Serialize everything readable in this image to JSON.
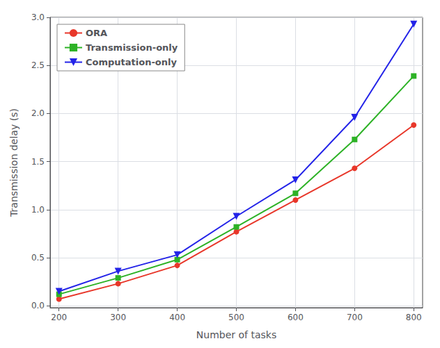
{
  "chart_data": {
    "type": "line",
    "xlabel": "Number of tasks",
    "ylabel": "Transmission delay (s)",
    "x": [
      200,
      300,
      400,
      500,
      600,
      700,
      800
    ],
    "series": [
      {
        "name": "ORA",
        "color": "#e8372a",
        "marker": "circle",
        "values": [
          0.07,
          0.23,
          0.42,
          0.77,
          1.1,
          1.43,
          1.88
        ]
      },
      {
        "name": "Transmission-only",
        "color": "#2db226",
        "marker": "square",
        "values": [
          0.12,
          0.29,
          0.48,
          0.82,
          1.17,
          1.73,
          2.39
        ]
      },
      {
        "name": "Computation-only",
        "color": "#2323e8",
        "marker": "triangle_down",
        "values": [
          0.15,
          0.36,
          0.53,
          0.93,
          1.31,
          1.96,
          2.93
        ]
      }
    ],
    "xlim": [
      185,
      815
    ],
    "ylim": [
      -0.02,
      3.0
    ],
    "xticks": [
      200,
      300,
      400,
      500,
      600,
      700,
      800
    ],
    "yticks": [
      {
        "value": 0.0,
        "label": "0.0"
      },
      0.5,
      {
        "value": 1.0,
        "label": "1.0"
      },
      1.5,
      {
        "value": 2.0,
        "label": "2.0"
      },
      2.5,
      {
        "value": 3.0,
        "label": "3.0"
      }
    ],
    "grid": true,
    "legend": "upper left"
  }
}
